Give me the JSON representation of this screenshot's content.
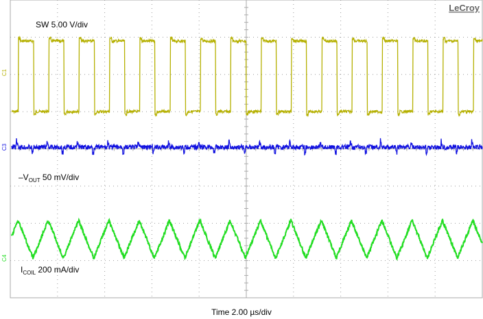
{
  "brand": "LeCroy",
  "channels": [
    {
      "marker": "C1",
      "label": {
        "prefix": "SW 5.00 V/div"
      }
    },
    {
      "marker": "C3",
      "label": {
        "prefix": "–V",
        "sub": "OUT",
        "suffix": " 50 mV/div"
      }
    },
    {
      "marker": "C4",
      "label": {
        "prefix": "I",
        "sub": "COIL",
        "suffix": " 200 mA/div"
      }
    }
  ],
  "timebase": "Time 2.00 µs/div"
}
